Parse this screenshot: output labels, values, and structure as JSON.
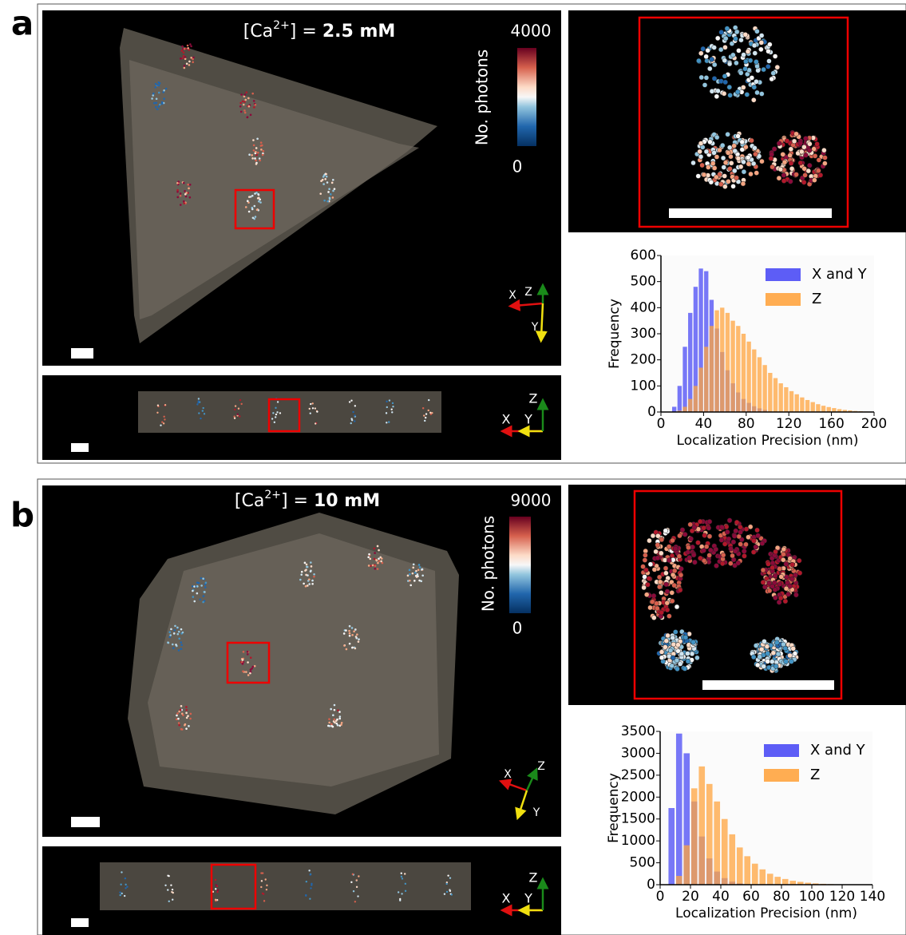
{
  "panels": [
    {
      "label": "a",
      "title": {
        "prefix": "[Ca",
        "sup": "2+",
        "suffix": "] = ",
        "value": "2.5 mM"
      },
      "colorbar": {
        "label": "No. photons",
        "max": "4000",
        "min": "0"
      },
      "top_axes": {
        "x": "X",
        "y": "Y",
        "z": "Z"
      },
      "side_axes": {
        "x": "X",
        "y": "Y",
        "z": "Z"
      }
    },
    {
      "label": "b",
      "title": {
        "prefix": "[Ca",
        "sup": "2+",
        "suffix": "] = ",
        "value": "10 mM"
      },
      "colorbar": {
        "label": "No. photons",
        "max": "9000",
        "min": "0"
      },
      "top_axes": {
        "x": "X",
        "y": "Y",
        "z": "Z"
      },
      "side_axes": {
        "x": "X",
        "y": "Y",
        "z": "Z"
      }
    }
  ],
  "chart_data": [
    {
      "type": "histogram",
      "xlabel": "Localization Precision (nm)",
      "ylabel": "Frequency",
      "bins": [
        0,
        5,
        10,
        15,
        20,
        25,
        30,
        35,
        40,
        45,
        50,
        55,
        60,
        65,
        70,
        75,
        80,
        85,
        90,
        95,
        100,
        105,
        110,
        115,
        120,
        125,
        130,
        135,
        140,
        145,
        150,
        155,
        160,
        165,
        170,
        175,
        180,
        185,
        190,
        195,
        200
      ],
      "series": [
        {
          "name": "X and Y",
          "color": "#4b4bf5",
          "values": [
            0,
            0,
            20,
            100,
            250,
            380,
            480,
            550,
            540,
            430,
            320,
            230,
            160,
            110,
            75,
            50,
            35,
            22,
            14,
            8,
            0,
            0,
            0,
            0,
            0,
            0,
            0,
            0,
            0,
            0,
            0,
            0,
            0,
            0,
            0,
            0,
            0,
            0,
            0,
            0
          ]
        },
        {
          "name": "Z",
          "color": "#ffa43f",
          "values": [
            0,
            0,
            0,
            5,
            20,
            50,
            100,
            170,
            250,
            330,
            390,
            400,
            380,
            350,
            330,
            300,
            270,
            240,
            210,
            180,
            150,
            130,
            110,
            95,
            80,
            68,
            56,
            46,
            38,
            30,
            24,
            19,
            15,
            11,
            8,
            6,
            4,
            3,
            2,
            1
          ]
        }
      ],
      "xlim": [
        0,
        200
      ],
      "ylim": [
        0,
        600
      ],
      "xticks": [
        0,
        40,
        80,
        120,
        160,
        200
      ],
      "yticks": [
        0,
        100,
        200,
        300,
        400,
        500,
        600
      ],
      "legend": "upper right"
    },
    {
      "type": "histogram",
      "xlabel": "Localization Precision (nm)",
      "ylabel": "Frequency",
      "bins": [
        0,
        5,
        10,
        15,
        20,
        25,
        30,
        35,
        40,
        45,
        50,
        55,
        60,
        65,
        70,
        75,
        80,
        85,
        90,
        95,
        100,
        105,
        110,
        115,
        120,
        125,
        130,
        135,
        140
      ],
      "series": [
        {
          "name": "X and Y",
          "color": "#4b4bf5",
          "values": [
            0,
            1750,
            3450,
            3000,
            1900,
            1100,
            600,
            300,
            150,
            70,
            30,
            10,
            0,
            0,
            0,
            0,
            0,
            0,
            0,
            0,
            0,
            0,
            0,
            0,
            0,
            0,
            0,
            0
          ]
        },
        {
          "name": "Z",
          "color": "#ffa43f",
          "values": [
            0,
            10,
            200,
            900,
            2200,
            2700,
            2300,
            1900,
            1500,
            1150,
            850,
            650,
            480,
            350,
            250,
            180,
            130,
            90,
            65,
            45,
            30,
            20,
            14,
            9,
            6,
            4,
            2,
            1
          ]
        }
      ],
      "xlim": [
        0,
        140
      ],
      "ylim": [
        0,
        3500
      ],
      "xticks": [
        0,
        20,
        40,
        60,
        80,
        100,
        120,
        140
      ],
      "yticks": [
        0,
        500,
        1000,
        1500,
        2000,
        2500,
        3000,
        3500
      ],
      "legend": "upper right"
    }
  ]
}
